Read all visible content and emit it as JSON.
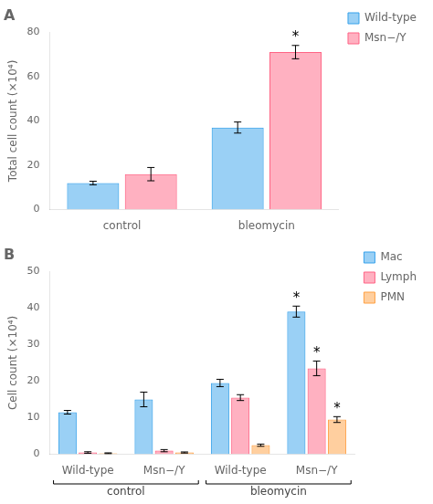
{
  "chart_data": [
    {
      "type": "bar",
      "title": "A",
      "ylabel": "Total cell count (×10⁴)",
      "categories": [
        "control",
        "bleomycin"
      ],
      "series": [
        {
          "name": "Wild-type",
          "values": [
            12,
            37
          ],
          "errors": [
            0.8,
            2.5
          ]
        },
        {
          "name": "Msn−/Y",
          "values": [
            16,
            71
          ],
          "errors": [
            3.0,
            3.0
          ]
        }
      ],
      "annotations": [
        {
          "text": "*",
          "series": "Msn−/Y",
          "category": "bleomycin"
        }
      ],
      "ylim": [
        0,
        80
      ],
      "yticks": [
        0,
        20,
        40,
        60,
        80
      ],
      "grid": false,
      "legend": "right"
    },
    {
      "type": "bar",
      "title": "B",
      "ylabel": "Cell count (×10⁴)",
      "categories": [
        "Wild-type",
        "Msn−/Y",
        "Wild-type",
        "Msn−/Y"
      ],
      "category_groups": [
        "control",
        "control",
        "bleomycin",
        "bleomycin"
      ],
      "series": [
        {
          "name": "Mac",
          "values": [
            11.5,
            15,
            19.5,
            39
          ],
          "errors": [
            0.5,
            2.0,
            1.0,
            1.5
          ]
        },
        {
          "name": "Lymph",
          "values": [
            0.5,
            1.0,
            15.5,
            23.5
          ],
          "errors": [
            0.2,
            0.3,
            0.8,
            2.0
          ]
        },
        {
          "name": "PMN",
          "values": [
            0.3,
            0.5,
            2.5,
            9.5
          ],
          "errors": [
            0.1,
            0.15,
            0.3,
            0.8
          ]
        }
      ],
      "annotations": [
        {
          "text": "*",
          "series": "Mac",
          "category": "Msn−/Y",
          "group": "bleomycin"
        },
        {
          "text": "*",
          "series": "Lymph",
          "category": "Msn−/Y",
          "group": "bleomycin"
        },
        {
          "text": "*",
          "series": "PMN",
          "category": "Msn−/Y",
          "group": "bleomycin"
        }
      ],
      "ylim": [
        0,
        50
      ],
      "yticks": [
        0,
        10,
        20,
        30,
        40,
        50
      ],
      "grid": false,
      "legend": "right"
    }
  ]
}
